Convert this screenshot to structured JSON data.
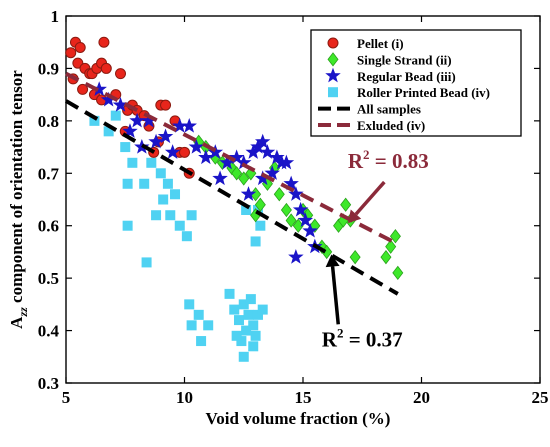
{
  "chart_data": {
    "type": "scatter",
    "xlabel": "Void volume fraction (%)",
    "ylabel_main": "A",
    "ylabel_sub": "zz",
    "ylabel_rest": " component of orientation tensor",
    "xlim": [
      5,
      25
    ],
    "ylim": [
      0.3,
      1
    ],
    "xticks": [
      "5",
      "10",
      "15",
      "20",
      "25"
    ],
    "yticks": [
      "0.3",
      "0.4",
      "0.5",
      "0.6",
      "0.7",
      "0.8",
      "0.9",
      "1"
    ],
    "grid": false,
    "legend_position": "top-right",
    "colors": {
      "pellet": "#e8251b",
      "pellet_edge": "#8b1a10",
      "single_strand": "#3ee82a",
      "regular_bead": "#1a14c8",
      "roller": "#4fd2f2",
      "all_samples": "#000000",
      "excluded": "#8b2a3a"
    },
    "series": [
      {
        "name": "Pellet (i)",
        "marker": "circle",
        "points": [
          [
            5.2,
            0.93
          ],
          [
            5.4,
            0.95
          ],
          [
            5.6,
            0.94
          ],
          [
            5.5,
            0.91
          ],
          [
            5.8,
            0.9
          ],
          [
            6.0,
            0.89
          ],
          [
            6.1,
            0.89
          ],
          [
            6.3,
            0.9
          ],
          [
            6.5,
            0.91
          ],
          [
            6.6,
            0.95
          ],
          [
            6.7,
            0.9
          ],
          [
            5.3,
            0.88
          ],
          [
            5.7,
            0.86
          ],
          [
            6.2,
            0.85
          ],
          [
            6.5,
            0.84
          ],
          [
            7.3,
            0.89
          ],
          [
            7.1,
            0.85
          ],
          [
            7.6,
            0.82
          ],
          [
            7.8,
            0.83
          ],
          [
            8.0,
            0.82
          ],
          [
            7.5,
            0.78
          ],
          [
            8.3,
            0.81
          ],
          [
            8.5,
            0.79
          ],
          [
            9.0,
            0.83
          ],
          [
            9.2,
            0.83
          ],
          [
            9.6,
            0.8
          ],
          [
            9.8,
            0.74
          ],
          [
            10.0,
            0.74
          ],
          [
            10.2,
            0.7
          ],
          [
            8.9,
            0.76
          ],
          [
            8.7,
            0.74
          ]
        ]
      },
      {
        "name": "Single Strand (ii)",
        "marker": "diamond",
        "points": [
          [
            10.6,
            0.76
          ],
          [
            10.9,
            0.75
          ],
          [
            11.3,
            0.73
          ],
          [
            11.6,
            0.72
          ],
          [
            12.0,
            0.71
          ],
          [
            12.2,
            0.7
          ],
          [
            12.5,
            0.69
          ],
          [
            12.8,
            0.7
          ],
          [
            13.0,
            0.66
          ],
          [
            13.2,
            0.64
          ],
          [
            13.5,
            0.68
          ],
          [
            13.8,
            0.71
          ],
          [
            14.0,
            0.66
          ],
          [
            14.3,
            0.63
          ],
          [
            14.5,
            0.61
          ],
          [
            14.8,
            0.6
          ],
          [
            15.0,
            0.63
          ],
          [
            15.2,
            0.62
          ],
          [
            15.5,
            0.6
          ],
          [
            15.8,
            0.56
          ],
          [
            16.0,
            0.55
          ],
          [
            16.5,
            0.6
          ],
          [
            16.8,
            0.64
          ],
          [
            17.0,
            0.61
          ],
          [
            17.2,
            0.54
          ],
          [
            18.5,
            0.54
          ],
          [
            18.7,
            0.56
          ],
          [
            19.0,
            0.51
          ],
          [
            18.9,
            0.58
          ],
          [
            16.7,
            0.61
          ],
          [
            13.0,
            0.62
          ]
        ]
      },
      {
        "name": "Regular Bead (iii)",
        "marker": "star",
        "points": [
          [
            6.4,
            0.86
          ],
          [
            6.8,
            0.84
          ],
          [
            7.3,
            0.83
          ],
          [
            7.7,
            0.78
          ],
          [
            8.0,
            0.8
          ],
          [
            8.2,
            0.75
          ],
          [
            8.5,
            0.8
          ],
          [
            8.8,
            0.76
          ],
          [
            9.2,
            0.77
          ],
          [
            9.5,
            0.74
          ],
          [
            9.8,
            0.79
          ],
          [
            10.2,
            0.79
          ],
          [
            10.5,
            0.75
          ],
          [
            10.9,
            0.73
          ],
          [
            11.3,
            0.74
          ],
          [
            11.8,
            0.72
          ],
          [
            12.2,
            0.73
          ],
          [
            12.5,
            0.72
          ],
          [
            12.9,
            0.74
          ],
          [
            13.1,
            0.75
          ],
          [
            13.3,
            0.76
          ],
          [
            13.5,
            0.74
          ],
          [
            13.7,
            0.7
          ],
          [
            13.9,
            0.73
          ],
          [
            14.1,
            0.72
          ],
          [
            14.3,
            0.72
          ],
          [
            14.5,
            0.68
          ],
          [
            14.7,
            0.66
          ],
          [
            14.9,
            0.63
          ],
          [
            15.1,
            0.61
          ],
          [
            15.3,
            0.59
          ],
          [
            15.5,
            0.56
          ],
          [
            14.7,
            0.54
          ],
          [
            13.3,
            0.69
          ],
          [
            12.7,
            0.66
          ],
          [
            11.5,
            0.69
          ]
        ]
      },
      {
        "name": "Roller Printed Bead (iv)",
        "marker": "square",
        "points": [
          [
            6.2,
            0.8
          ],
          [
            6.8,
            0.78
          ],
          [
            7.1,
            0.81
          ],
          [
            7.5,
            0.75
          ],
          [
            7.8,
            0.72
          ],
          [
            7.6,
            0.68
          ],
          [
            8.3,
            0.68
          ],
          [
            8.6,
            0.72
          ],
          [
            9.0,
            0.7
          ],
          [
            9.3,
            0.68
          ],
          [
            9.1,
            0.65
          ],
          [
            8.8,
            0.62
          ],
          [
            9.4,
            0.62
          ],
          [
            9.8,
            0.6
          ],
          [
            10.1,
            0.58
          ],
          [
            10.3,
            0.62
          ],
          [
            9.6,
            0.66
          ],
          [
            8.4,
            0.53
          ],
          [
            7.6,
            0.6
          ],
          [
            10.2,
            0.45
          ],
          [
            10.6,
            0.43
          ],
          [
            11.0,
            0.41
          ],
          [
            10.3,
            0.41
          ],
          [
            10.7,
            0.38
          ],
          [
            11.9,
            0.47
          ],
          [
            12.1,
            0.44
          ],
          [
            12.3,
            0.42
          ],
          [
            12.5,
            0.45
          ],
          [
            12.7,
            0.43
          ],
          [
            12.9,
            0.41
          ],
          [
            12.6,
            0.4
          ],
          [
            12.4,
            0.38
          ],
          [
            12.2,
            0.39
          ],
          [
            13.1,
            0.43
          ],
          [
            13.3,
            0.44
          ],
          [
            12.8,
            0.46
          ],
          [
            13.0,
            0.39
          ],
          [
            12.5,
            0.35
          ],
          [
            12.9,
            0.37
          ],
          [
            13.1,
            0.63
          ],
          [
            13.2,
            0.6
          ],
          [
            12.6,
            0.63
          ],
          [
            13.0,
            0.57
          ]
        ]
      }
    ],
    "fit_lines": [
      {
        "name": "All samples",
        "x": [
          5,
          19
        ],
        "y": [
          0.838,
          0.47
        ],
        "style": "dashed-black"
      },
      {
        "name": "Exluded (iv)",
        "x": [
          5,
          19
        ],
        "y": [
          0.89,
          0.565
        ],
        "style": "dashed-maroon"
      }
    ],
    "annotations": [
      {
        "id": "r2-excluded",
        "base": "R",
        "sup": "2",
        "tail": " = 0.83",
        "color": "#8b2a3a",
        "at": [
          18.6,
          0.71
        ],
        "arrow_to": [
          16.9,
          0.605
        ]
      },
      {
        "id": "r2-all",
        "base": "R",
        "sup": "2",
        "tail": " = 0.37",
        "color": "#000000",
        "at": [
          17.5,
          0.37
        ],
        "arrow_to": [
          16.2,
          0.545
        ]
      }
    ]
  }
}
